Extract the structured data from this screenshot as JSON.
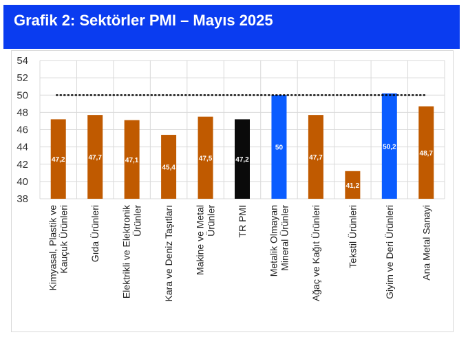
{
  "header": {
    "title": "Grafik 2: Sektörler PMI – Mayıs 2025"
  },
  "colors": {
    "header_bg": "#0a3cf0",
    "sector_bar": "#c05a00",
    "tr_pmi_bar": "#0a0a0a",
    "highlight_bar": "#0a5cff",
    "gridline": "#d9d9d9",
    "threshold_line": "#000000",
    "data_label": "#ffffff"
  },
  "chart_data": {
    "type": "bar",
    "categories": [
      "Kimyasal, Plastik ve Kauçuk Ürünleri",
      "Gıda Ürünleri",
      "Elektrikli ve Elektronik Ürünler",
      "Kara ve Deniz Taşıtları",
      "Makine ve Metal Ürünler",
      "TR PMI",
      "Metalik Olmayan Mineral Ürünler",
      "Ağaç ve Kağıt Ürünleri",
      "Tekstil Ürünleri",
      "Giyim ve Deri Ürünleri",
      "Ana Metal Sanayi"
    ],
    "category_lines": [
      [
        "Kimyasal, Plastik ve",
        "Kauçuk Ürünleri"
      ],
      [
        "Gıda Ürünleri"
      ],
      [
        "Elektrikli ve Elektronik",
        "Ürünler"
      ],
      [
        "Kara ve Deniz Taşıtları"
      ],
      [
        "Makine ve Metal",
        "Ürünler"
      ],
      [
        "TR PMI"
      ],
      [
        "Metalik Olmayan",
        "Mineral Ürünler"
      ],
      [
        "Ağaç ve Kağıt Ürünleri"
      ],
      [
        "Tekstil Ürünleri"
      ],
      [
        "Giyim ve Deri Ürünleri"
      ],
      [
        "Ana Metal Sanayi"
      ]
    ],
    "values": [
      47.2,
      47.7,
      47.1,
      45.4,
      47.5,
      47.2,
      50,
      47.7,
      41.2,
      50.2,
      48.7
    ],
    "value_labels": [
      "47,2",
      "47,7",
      "47,1",
      "45,4",
      "47,5",
      "47,2",
      "50",
      "47,7",
      "41,2",
      "50,2",
      "48,7"
    ],
    "bar_colors": [
      "sector_bar",
      "sector_bar",
      "sector_bar",
      "sector_bar",
      "sector_bar",
      "tr_pmi_bar",
      "highlight_bar",
      "sector_bar",
      "sector_bar",
      "highlight_bar",
      "sector_bar"
    ],
    "threshold": 50,
    "ylim": [
      38,
      54
    ],
    "yticks": [
      38,
      40,
      42,
      44,
      46,
      48,
      50,
      52,
      54
    ],
    "grid": true,
    "legend": "none"
  }
}
